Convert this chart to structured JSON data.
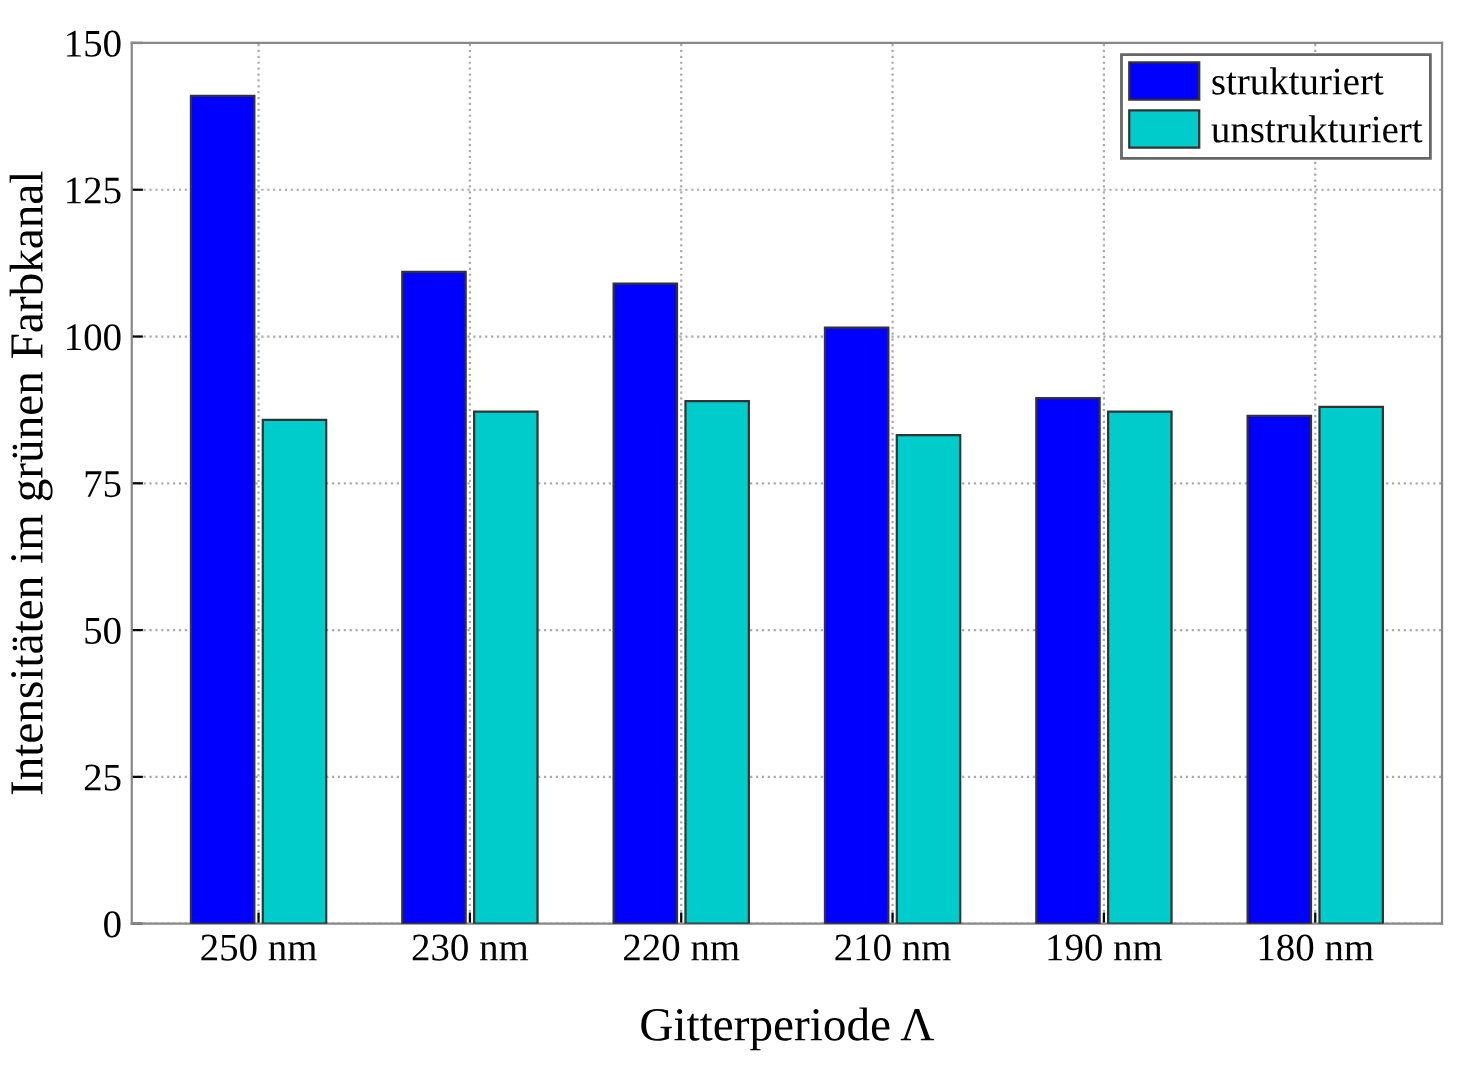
{
  "chart_data": {
    "type": "bar",
    "xlabel": "Gitterperiode Λ",
    "ylabel": "Intensitäten im grünen Farbkanal",
    "categories": [
      "250 nm",
      "230 nm",
      "220 nm",
      "210 nm",
      "190 nm",
      "180 nm"
    ],
    "series": [
      {
        "name": "strukturiert",
        "color": "#0000ff",
        "values": [
          141,
          111,
          109,
          101.5,
          89.5,
          86.5
        ]
      },
      {
        "name": "unstrukturiert",
        "color": "#00cccc",
        "values": [
          85.8,
          87.2,
          89,
          83.2,
          87.2,
          88
        ]
      }
    ],
    "ylim": [
      0,
      150
    ],
    "yticks": [
      0,
      25,
      50,
      75,
      100,
      125,
      150
    ],
    "grid": true,
    "legend": "top right"
  }
}
